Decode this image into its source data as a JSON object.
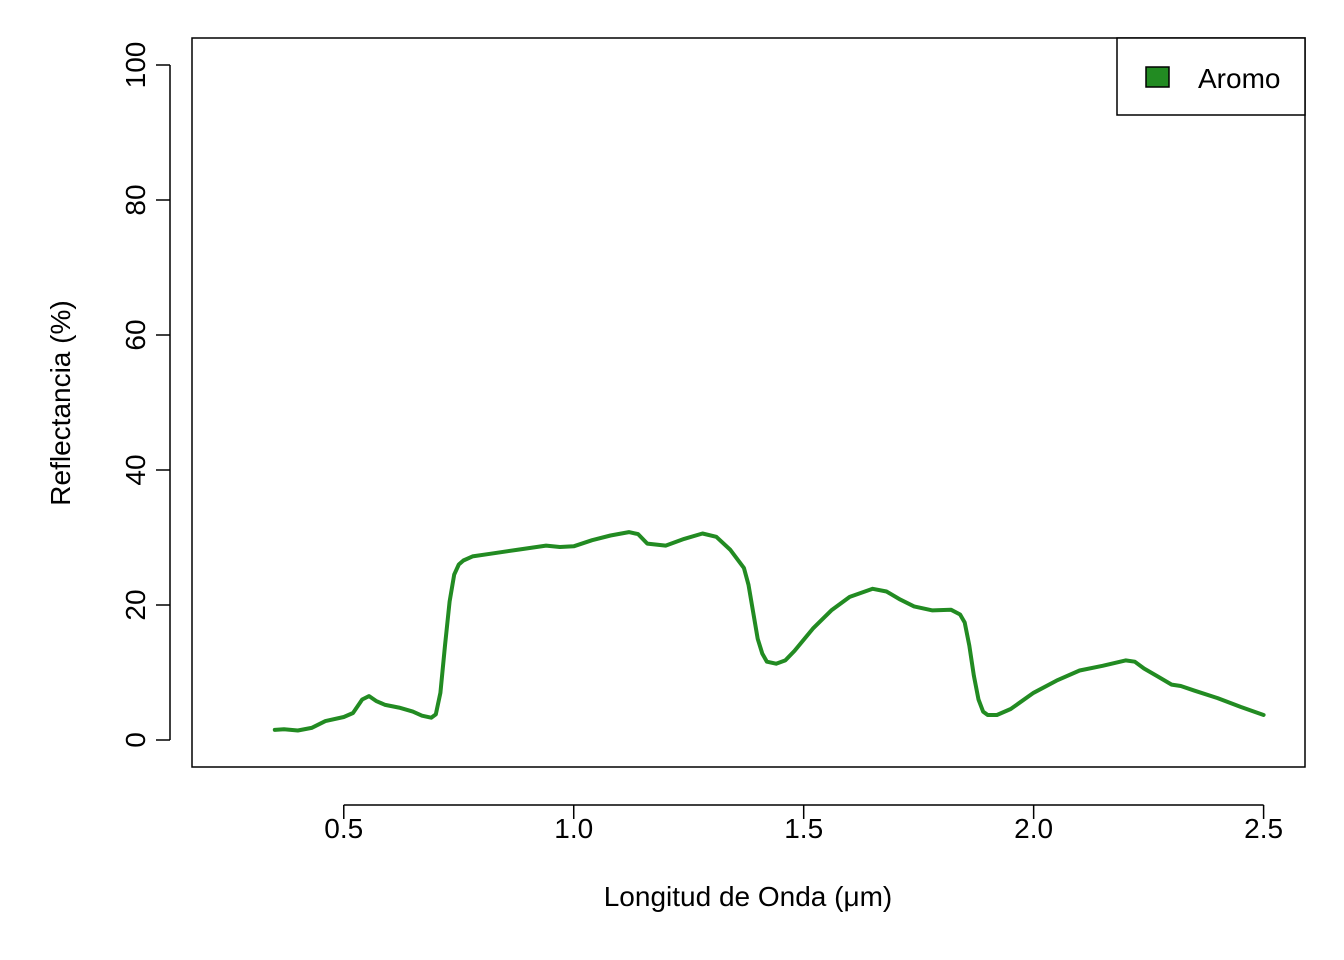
{
  "chart_data": {
    "type": "line",
    "xlabel": "Longitud de Onda (μm)",
    "ylabel": "Reflectancia (%)",
    "xlim": [
      0.17,
      2.59
    ],
    "ylim": [
      -4,
      104
    ],
    "x_ticks": [
      0.5,
      1.0,
      1.5,
      2.0,
      2.5
    ],
    "x_tick_labels": [
      "0.5",
      "1.0",
      "1.5",
      "2.0",
      "2.5"
    ],
    "y_ticks": [
      0,
      20,
      40,
      60,
      80,
      100
    ],
    "y_tick_labels": [
      "0",
      "20",
      "40",
      "60",
      "80",
      "100"
    ],
    "grid": false,
    "legend": {
      "position": "top-right",
      "entries": [
        "Aromo"
      ]
    },
    "series": [
      {
        "name": "Aromo",
        "color": "#228B22",
        "x": [
          0.35,
          0.37,
          0.4,
          0.43,
          0.46,
          0.5,
          0.52,
          0.54,
          0.555,
          0.57,
          0.59,
          0.62,
          0.65,
          0.67,
          0.69,
          0.7,
          0.71,
          0.72,
          0.73,
          0.74,
          0.75,
          0.76,
          0.78,
          0.82,
          0.88,
          0.94,
          0.97,
          1.0,
          1.04,
          1.08,
          1.12,
          1.14,
          1.16,
          1.2,
          1.24,
          1.28,
          1.31,
          1.34,
          1.36,
          1.37,
          1.38,
          1.39,
          1.4,
          1.41,
          1.42,
          1.44,
          1.46,
          1.48,
          1.52,
          1.56,
          1.6,
          1.65,
          1.68,
          1.71,
          1.74,
          1.78,
          1.82,
          1.84,
          1.85,
          1.86,
          1.87,
          1.88,
          1.89,
          1.9,
          1.92,
          1.95,
          2.0,
          2.05,
          2.1,
          2.15,
          2.2,
          2.22,
          2.24,
          2.27,
          2.3,
          2.32,
          2.35,
          2.4,
          2.45,
          2.5
        ],
        "y": [
          1.5,
          1.6,
          1.4,
          1.8,
          2.8,
          3.4,
          4.0,
          6.0,
          6.5,
          5.8,
          5.2,
          4.8,
          4.2,
          3.6,
          3.3,
          3.8,
          7.0,
          14.0,
          20.5,
          24.5,
          26.0,
          26.6,
          27.2,
          27.6,
          28.2,
          28.8,
          28.6,
          28.7,
          29.6,
          30.3,
          30.8,
          30.5,
          29.1,
          28.8,
          29.8,
          30.6,
          30.1,
          28.2,
          26.4,
          25.5,
          23.0,
          19.0,
          15.0,
          12.8,
          11.6,
          11.3,
          11.8,
          13.2,
          16.5,
          19.2,
          21.2,
          22.4,
          22.0,
          20.8,
          19.8,
          19.2,
          19.3,
          18.6,
          17.4,
          14.0,
          9.5,
          6.0,
          4.2,
          3.7,
          3.7,
          4.6,
          7.0,
          8.8,
          10.3,
          11.0,
          11.8,
          11.6,
          10.6,
          9.4,
          8.2,
          8.0,
          7.3,
          6.2,
          4.9,
          3.7
        ]
      }
    ]
  }
}
